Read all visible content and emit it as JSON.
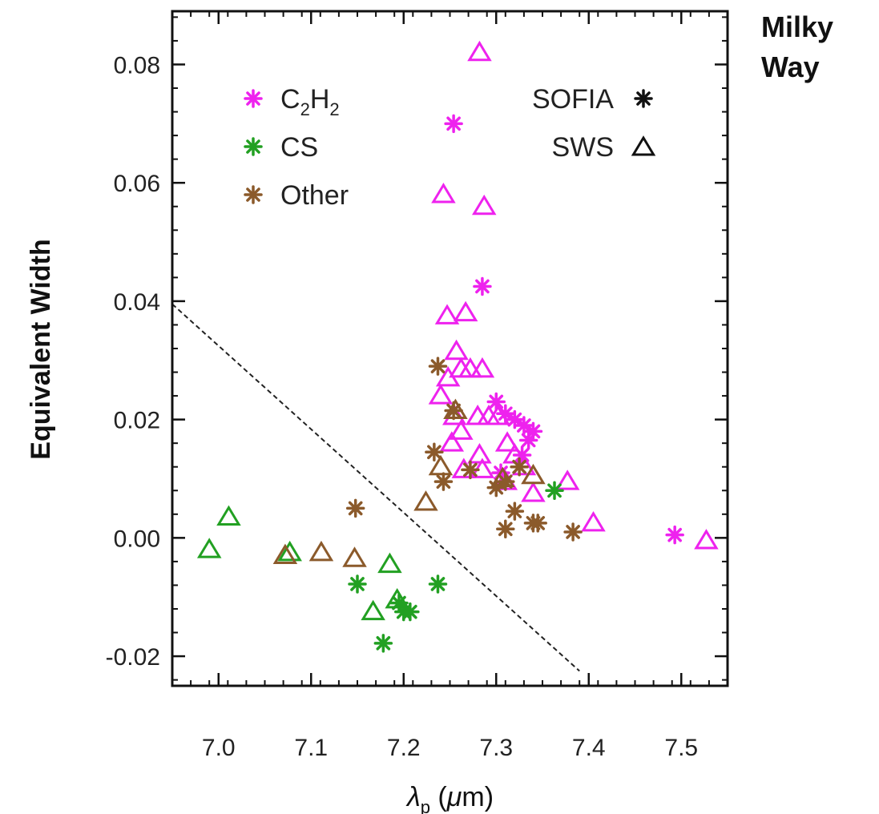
{
  "corner_label": [
    "Milky",
    "Way"
  ],
  "chart_data": {
    "type": "scatter",
    "ylabel": "Equivalent Width",
    "xlabel": {
      "symbol": "λ",
      "subscript": "p",
      "unit_open": " (",
      "unit_mu": "μ",
      "unit_rest": "m)"
    },
    "xlim": [
      6.95,
      7.55
    ],
    "ylim": [
      -0.025,
      0.089
    ],
    "x_ticks": [
      {
        "value": 7.0,
        "label": "7.0"
      },
      {
        "value": 7.1,
        "label": "7.1"
      },
      {
        "value": 7.2,
        "label": "7.2"
      },
      {
        "value": 7.3,
        "label": "7.3"
      },
      {
        "value": 7.4,
        "label": "7.4"
      },
      {
        "value": 7.5,
        "label": "7.5"
      }
    ],
    "y_ticks": [
      {
        "value": -0.02,
        "label": "-0.02"
      },
      {
        "value": 0.0,
        "label": "0.00"
      },
      {
        "value": 0.02,
        "label": "0.02"
      },
      {
        "value": 0.04,
        "label": "0.04"
      },
      {
        "value": 0.06,
        "label": "0.06"
      },
      {
        "value": 0.08,
        "label": "0.08"
      }
    ],
    "x_minor_step": 0.02,
    "y_minor_step": 0.004,
    "legend_class": [
      {
        "label_main": "C",
        "sub1": "2",
        "label_mid": "H",
        "sub2": "2",
        "color": "#ee22ee"
      },
      {
        "label_main": "CS",
        "color": "#22a022"
      },
      {
        "label_main": "Other",
        "color": "#8b5a2b"
      }
    ],
    "legend_source": [
      {
        "label": "SOFIA",
        "marker": "asterisk"
      },
      {
        "label": "SWS",
        "marker": "triangle"
      }
    ],
    "colors": {
      "C2H2": "#ee22ee",
      "CS": "#22a022",
      "Other": "#8b5a2b",
      "frame": "#111111"
    },
    "divider_line": {
      "x": [
        6.95,
        7.39
      ],
      "y": [
        0.0395,
        -0.0225
      ],
      "style": "dashed"
    },
    "series": [
      {
        "class": "C2H2",
        "source": "SOFIA",
        "marker": "asterisk",
        "points": [
          [
            7.254,
            0.07
          ],
          [
            7.285,
            0.0425
          ],
          [
            7.3,
            0.023
          ],
          [
            7.31,
            0.021
          ],
          [
            7.32,
            0.02
          ],
          [
            7.33,
            0.019
          ],
          [
            7.335,
            0.0165
          ],
          [
            7.34,
            0.018
          ],
          [
            7.328,
            0.014
          ],
          [
            7.305,
            0.011
          ],
          [
            7.493,
            0.0005
          ]
        ]
      },
      {
        "class": "C2H2",
        "source": "SWS",
        "marker": "triangle",
        "points": [
          [
            7.282,
            0.082
          ],
          [
            7.243,
            0.058
          ],
          [
            7.287,
            0.056
          ],
          [
            7.247,
            0.0375
          ],
          [
            7.267,
            0.038
          ],
          [
            7.257,
            0.0315
          ],
          [
            7.248,
            0.027
          ],
          [
            7.262,
            0.0285
          ],
          [
            7.272,
            0.0285
          ],
          [
            7.285,
            0.0285
          ],
          [
            7.24,
            0.024
          ],
          [
            7.255,
            0.0205
          ],
          [
            7.28,
            0.0205
          ],
          [
            7.292,
            0.0205
          ],
          [
            7.302,
            0.0205
          ],
          [
            7.262,
            0.018
          ],
          [
            7.252,
            0.016
          ],
          [
            7.282,
            0.014
          ],
          [
            7.312,
            0.016
          ],
          [
            7.32,
            0.014
          ],
          [
            7.265,
            0.0115
          ],
          [
            7.285,
            0.0115
          ],
          [
            7.31,
            0.0095
          ],
          [
            7.33,
            0.012
          ],
          [
            7.34,
            0.0075
          ],
          [
            7.377,
            0.0095
          ],
          [
            7.405,
            0.0025
          ],
          [
            7.527,
            -0.0005
          ]
        ]
      },
      {
        "class": "CS",
        "source": "SOFIA",
        "marker": "asterisk",
        "points": [
          [
            7.363,
            0.008
          ],
          [
            7.15,
            -0.0078
          ],
          [
            7.237,
            -0.0078
          ],
          [
            7.195,
            -0.011
          ],
          [
            7.2,
            -0.0125
          ],
          [
            7.207,
            -0.0125
          ],
          [
            7.178,
            -0.0178
          ]
        ]
      },
      {
        "class": "CS",
        "source": "SWS",
        "marker": "triangle",
        "points": [
          [
            6.99,
            -0.002
          ],
          [
            7.011,
            0.0035
          ],
          [
            7.077,
            -0.0025
          ],
          [
            7.185,
            -0.0045
          ],
          [
            7.193,
            -0.0105
          ],
          [
            7.167,
            -0.0125
          ]
        ]
      },
      {
        "class": "Other",
        "source": "SOFIA",
        "marker": "asterisk",
        "points": [
          [
            7.237,
            0.029
          ],
          [
            7.233,
            0.0145
          ],
          [
            7.254,
            0.0215
          ],
          [
            7.243,
            0.0095
          ],
          [
            7.272,
            0.0115
          ],
          [
            7.3,
            0.0085
          ],
          [
            7.31,
            0.0015
          ],
          [
            7.32,
            0.0045
          ],
          [
            7.31,
            0.0095
          ],
          [
            7.325,
            0.012
          ],
          [
            7.34,
            0.0025
          ],
          [
            7.345,
            0.0025
          ],
          [
            7.383,
            0.001
          ],
          [
            7.148,
            0.005
          ]
        ]
      },
      {
        "class": "Other",
        "source": "SWS",
        "marker": "triangle",
        "points": [
          [
            7.256,
            0.0215
          ],
          [
            7.24,
            0.012
          ],
          [
            7.224,
            0.006
          ],
          [
            7.307,
            0.01
          ],
          [
            7.072,
            -0.003
          ],
          [
            7.111,
            -0.0025
          ],
          [
            7.147,
            -0.0035
          ],
          [
            7.34,
            0.0105
          ]
        ]
      }
    ]
  }
}
